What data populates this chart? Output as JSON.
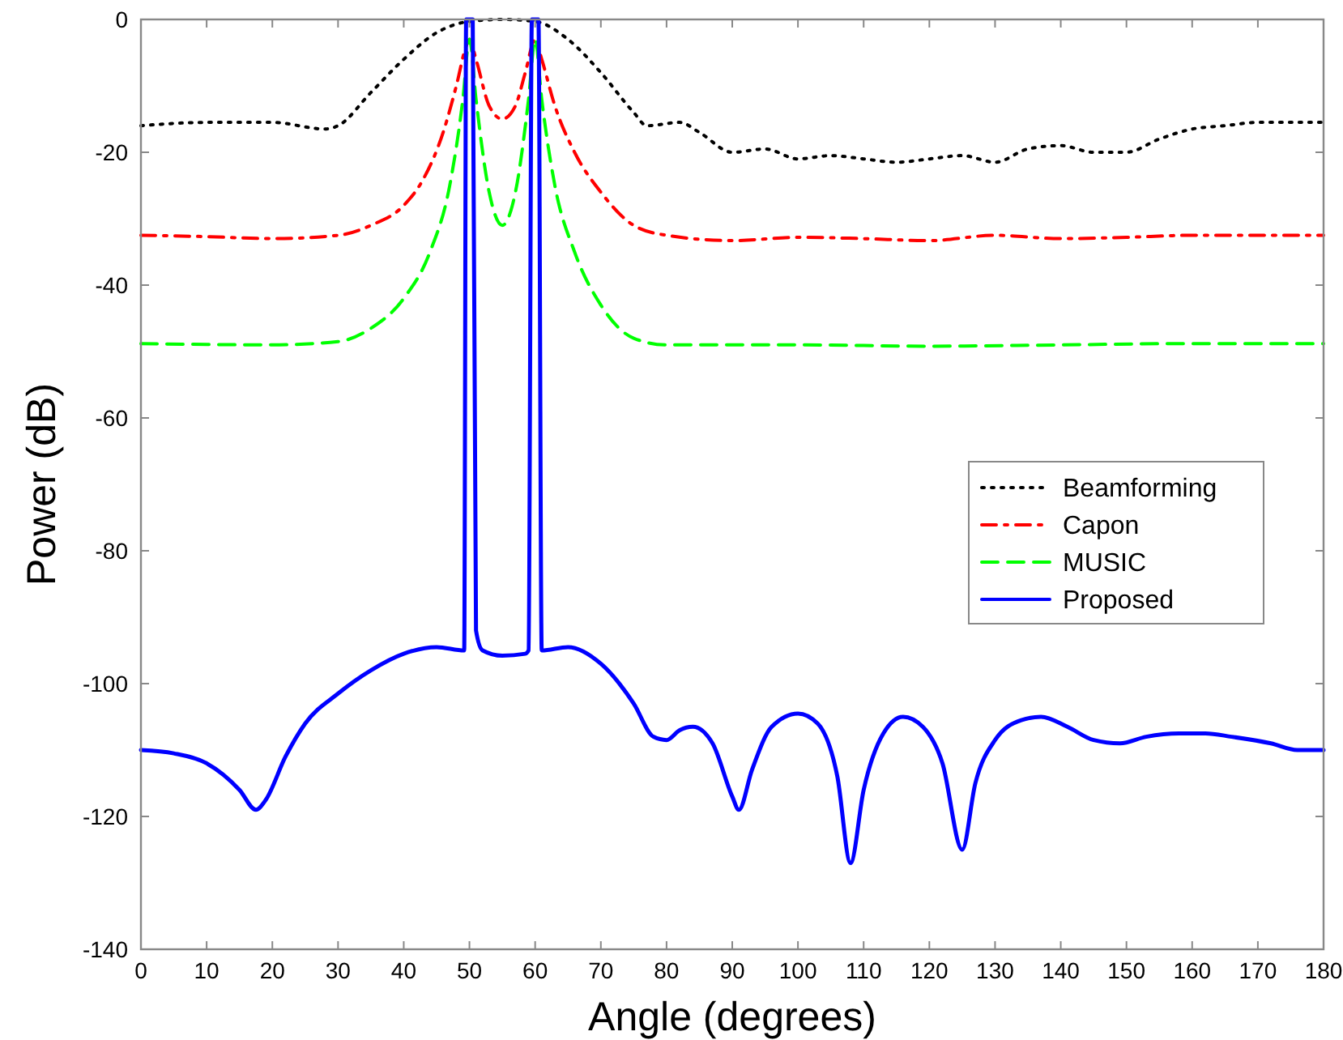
{
  "chart_data": {
    "type": "line",
    "xlabel": "Angle (degrees)",
    "ylabel": "Power (dB)",
    "xlim": [
      0,
      180
    ],
    "ylim": [
      -140,
      0
    ],
    "xticks": [
      0,
      10,
      20,
      30,
      40,
      50,
      60,
      70,
      80,
      90,
      100,
      110,
      120,
      130,
      140,
      150,
      160,
      170,
      180
    ],
    "yticks": [
      -140,
      -120,
      -100,
      -80,
      -60,
      -40,
      -20,
      0
    ],
    "grid": false,
    "legend": "right",
    "series": [
      {
        "name": "Beamforming",
        "color": "#000000",
        "line_style": "dotted",
        "x": [
          0,
          10,
          20,
          28,
          30,
          35,
          40,
          45,
          50,
          55,
          60,
          65,
          70,
          75,
          77,
          82,
          85,
          90,
          95,
          100,
          105,
          110,
          115,
          120,
          125,
          130,
          135,
          140,
          145,
          150,
          155,
          160,
          165,
          170,
          180
        ],
        "values": [
          -16,
          -15.5,
          -15.5,
          -16.5,
          -16,
          -11,
          -6,
          -2,
          -0.3,
          0,
          -0.3,
          -3,
          -8,
          -14,
          -16,
          -15.5,
          -17,
          -20,
          -19.5,
          -21,
          -20.5,
          -21,
          -21.5,
          -21,
          -20.5,
          -21.5,
          -19.5,
          -19,
          -20,
          -20,
          -18,
          -16.5,
          -16,
          -15.5,
          -15.5
        ]
      },
      {
        "name": "Capon",
        "color": "#ff0000",
        "line_style": "dashdot",
        "x": [
          0,
          10,
          20,
          30,
          35,
          40,
          43,
          46,
          48,
          49.5,
          50,
          51,
          53,
          55,
          57,
          58.5,
          60,
          61,
          63,
          66,
          70,
          75,
          80,
          90,
          100,
          110,
          120,
          130,
          140,
          150,
          160,
          170,
          180
        ],
        "values": [
          -32.5,
          -32.7,
          -33,
          -32.5,
          -31,
          -28,
          -24,
          -17,
          -10,
          -4,
          -3,
          -6,
          -13,
          -15,
          -13,
          -8,
          -3,
          -6,
          -13,
          -20,
          -26,
          -31,
          -32.5,
          -33.3,
          -32.8,
          -33,
          -33.3,
          -32.5,
          -33,
          -32.8,
          -32.5,
          -32.5,
          -32.5
        ]
      },
      {
        "name": "MUSIC",
        "color": "#00ff00",
        "line_style": "dashed",
        "x": [
          0,
          20,
          30,
          35,
          40,
          44,
          47,
          49,
          50,
          51,
          53,
          55,
          57,
          59,
          60,
          61,
          63,
          66,
          70,
          75,
          80,
          100,
          120,
          140,
          160,
          180
        ],
        "values": [
          -48.8,
          -49,
          -48.5,
          -46.5,
          -42,
          -35,
          -25,
          -12,
          -3,
          -12,
          -26,
          -31,
          -26,
          -12,
          -3,
          -12,
          -25,
          -35,
          -43,
          -48,
          -49,
          -49,
          -49.2,
          -49,
          -48.8,
          -48.8
        ]
      },
      {
        "name": "Proposed",
        "color": "#0000ff",
        "line_style": "solid",
        "x": [
          0,
          5,
          10,
          15,
          17.5,
          19,
          22,
          25,
          30,
          35,
          40,
          45,
          49.2,
          49.5,
          50.5,
          51,
          52,
          55,
          58.5,
          59,
          59.5,
          60.5,
          61,
          65,
          70,
          75,
          78,
          80,
          82,
          84,
          87,
          90,
          91,
          93,
          96,
          100,
          103,
          106,
          108,
          110,
          113,
          116,
          119,
          122,
          125,
          127,
          130,
          134,
          137,
          141,
          145,
          149,
          153,
          158,
          162,
          166,
          172,
          176,
          180
        ],
        "values": [
          -110,
          -110.5,
          -112,
          -116,
          -119,
          -117.5,
          -111,
          -106,
          -101.5,
          -98,
          -95.5,
          -94.5,
          -95,
          0,
          0,
          -92,
          -95,
          -95.8,
          -95.5,
          -95,
          0,
          0,
          -95,
          -94.5,
          -97,
          -103,
          -108,
          -108.5,
          -107,
          -106.5,
          -109,
          -117,
          -119,
          -113,
          -106.5,
          -104.5,
          -106,
          -114,
          -127,
          -116,
          -107.5,
          -105,
          -106.5,
          -112,
          -125,
          -115,
          -108.5,
          -105.5,
          -105,
          -106.5,
          -108.5,
          -109,
          -108,
          -107.5,
          -107.5,
          -108,
          -109,
          -110,
          -110
        ]
      }
    ]
  }
}
